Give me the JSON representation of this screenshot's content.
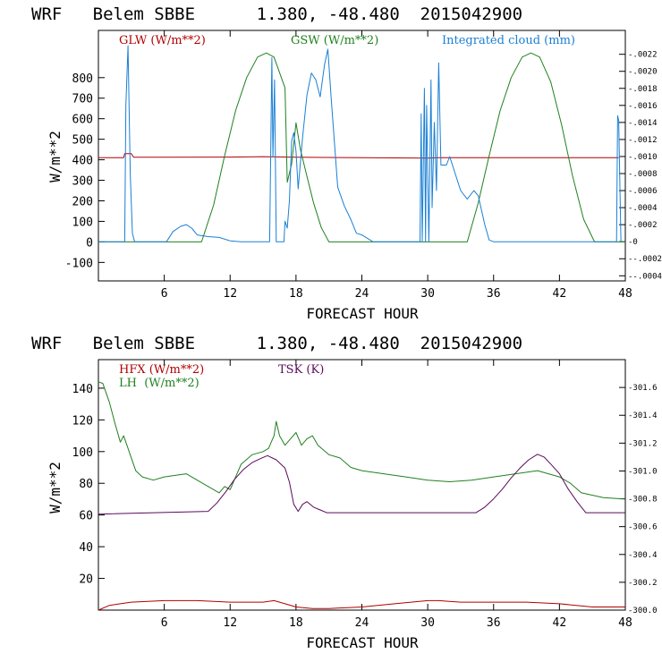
{
  "chart_data": [
    {
      "type": "line",
      "title": "WRF   Belem SBBE      1.380, -48.480  2015042900",
      "xlabel": "FORECAST HOUR",
      "ylabel": "W/m**2",
      "xlim": [
        0,
        48
      ],
      "ylim": [
        -190,
        1030
      ],
      "y2lim": [
        -0.00046,
        0.00248
      ],
      "x_ticks": [
        "6",
        "12",
        "18",
        "24",
        "30",
        "36",
        "42",
        "48"
      ],
      "y_ticks": [
        "-100",
        "0",
        "100",
        "200",
        "300",
        "400",
        "500",
        "600",
        "700",
        "800"
      ],
      "y2_ticks": [
        ".0022",
        ".0020",
        ".0018",
        ".0016",
        ".0014",
        ".0012",
        ".0010",
        ".0008",
        ".0006",
        ".0004",
        ".0002",
        "0",
        "-.0002",
        "-.0004"
      ],
      "series": [
        {
          "name": "GLW (W/m**2)",
          "color": "#b00000",
          "axis": "left",
          "x": [
            0,
            2.3,
            2.4,
            3.0,
            3.2,
            6,
            12,
            15,
            18,
            24,
            30,
            31,
            36,
            42,
            47.4
          ],
          "y": [
            410,
            410,
            430,
            430,
            412,
            412,
            413,
            415,
            412,
            410,
            408,
            410,
            410,
            410,
            410
          ]
        },
        {
          "name": "GSW (W/m**2)",
          "color": "#208020",
          "axis": "left",
          "x": [
            0,
            9.4,
            10.5,
            11.5,
            12.5,
            13.5,
            14.5,
            15.3,
            16,
            17,
            17.2,
            17.6,
            18,
            18.4,
            19,
            19.6,
            20.3,
            21,
            33.6,
            34.6,
            35.6,
            36.6,
            37.6,
            38.6,
            39.4,
            40.2,
            41.2,
            42.2,
            43.2,
            44.2,
            45.2,
            48
          ],
          "y": [
            0,
            0,
            180,
            420,
            640,
            800,
            900,
            920,
            900,
            750,
            290,
            380,
            580,
            450,
            320,
            190,
            70,
            0,
            0,
            190,
            420,
            640,
            800,
            900,
            920,
            900,
            780,
            570,
            320,
            110,
            0,
            0
          ]
        },
        {
          "name": "Integrated cloud (mm)",
          "color": "#1a7fd4",
          "axis": "right",
          "x": [
            0,
            2.4,
            2.5,
            2.7,
            2.9,
            3.1,
            3.3,
            6.2,
            6.8,
            7.5,
            8,
            8.5,
            9,
            10,
            11,
            12,
            13,
            15.6,
            15.8,
            15.9,
            16.05,
            16.2,
            16.9,
            17,
            17.2,
            17.4,
            17.6,
            17.8,
            18,
            18.2,
            18.6,
            19,
            19.4,
            19.8,
            20.2,
            20.6,
            20.9,
            21.2,
            21.8,
            22.4,
            23,
            23.5,
            24,
            25,
            29.3,
            29.4,
            29.5,
            29.7,
            29.8,
            29.9,
            30.1,
            30.3,
            30.4,
            30.6,
            30.8,
            31,
            31.2,
            31.4,
            31.7,
            32,
            32.5,
            33,
            33.6,
            34.2,
            34.6,
            35.2,
            35.6,
            36,
            47.2,
            47.3,
            47.4,
            47.6
          ],
          "y": [
            0,
            0,
            0.0016,
            0.0023,
            0.0008,
            0.0001,
            0,
            0,
            0.00012,
            0.00018,
            0.0002,
            0.00016,
            8e-05,
            6e-05,
            5e-05,
            1e-05,
            0,
            0,
            0.00216,
            0.001,
            0.0019,
            0,
            0,
            0.00024,
            0.00016,
            0.00048,
            0.00118,
            0.00128,
            0.00106,
            0.00062,
            0.00122,
            0.00172,
            0.00198,
            0.0019,
            0.0017,
            0.00208,
            0.00226,
            0.0017,
            0.00064,
            0.00042,
            0.00026,
            0.0001,
            8e-05,
            0,
            0,
            0.0015,
            0,
            0.0018,
            0,
            0.0016,
            0,
            0.0019,
            0.0004,
            0.0014,
            0.0006,
            0.0021,
            0.0009,
            0.0009,
            0.0009,
            0.001,
            0.0008,
            0.0006,
            0.0005,
            0.0006,
            0.00054,
            0.0002,
            2e-05,
            0,
            0,
            0.00148,
            0.00142,
            0
          ]
        }
      ]
    },
    {
      "type": "line",
      "title": "WRF   Belem SBBE      1.380, -48.480  2015042900",
      "xlabel": "FORECAST HOUR",
      "ylabel": "W/m**2",
      "xlim": [
        0,
        48
      ],
      "ylim": [
        0,
        158
      ],
      "y2lim": [
        300.0,
        301.8
      ],
      "x_ticks": [
        "6",
        "12",
        "18",
        "24",
        "30",
        "36",
        "42",
        "48"
      ],
      "y_ticks": [
        "20",
        "40",
        "60",
        "80",
        "100",
        "120",
        "140"
      ],
      "y2_ticks": [
        "301.6",
        "301.4",
        "301.2",
        "301.0",
        "300.8",
        "300.6",
        "300.4",
        "300.2",
        "300.0"
      ],
      "series": [
        {
          "name": "HFX (W/m**2)",
          "color": "#b00000",
          "axis": "left",
          "x": [
            0,
            1,
            2,
            3,
            6,
            9,
            12,
            15,
            16,
            17,
            18,
            19.5,
            21,
            24,
            27,
            30,
            31,
            33,
            36,
            39,
            42,
            45,
            48
          ],
          "y": [
            0,
            3,
            4,
            5,
            6,
            6,
            5,
            5,
            6,
            4,
            2,
            1,
            1,
            2,
            4,
            6,
            6,
            5,
            5,
            5,
            4,
            2,
            2
          ]
        },
        {
          "name": "LH  (W/m**2)",
          "color": "#208020",
          "axis": "left",
          "x": [
            0,
            0.4,
            1,
            1.5,
            2,
            2.3,
            2.6,
            3,
            3.4,
            4,
            5,
            6,
            7,
            8,
            9,
            10,
            10.5,
            11,
            11.5,
            12,
            12.5,
            13,
            14,
            15,
            15.5,
            16,
            16.2,
            16.5,
            17,
            17.5,
            18,
            18.5,
            19,
            19.5,
            20,
            21,
            22,
            23,
            24,
            26,
            28,
            30,
            32,
            34,
            36,
            38,
            40,
            41,
            42,
            43,
            44,
            46,
            48
          ],
          "y": [
            144,
            143,
            131,
            118,
            106,
            110,
            104,
            96,
            88,
            84,
            82,
            84,
            85,
            86,
            82,
            78,
            76,
            74,
            78,
            76,
            84,
            92,
            98,
            100,
            102,
            110,
            119,
            110,
            104,
            108,
            112,
            104,
            108,
            110,
            104,
            98,
            96,
            90,
            88,
            86,
            84,
            82,
            81,
            82,
            84,
            86,
            88,
            86,
            84,
            80,
            74,
            71,
            70
          ]
        },
        {
          "name": "TSK (K)",
          "color": "#5a0a5a",
          "axis": "right",
          "x": [
            0,
            10,
            10.8,
            11.6,
            12.4,
            13.2,
            14,
            14.8,
            15.4,
            16.2,
            17,
            17.4,
            17.8,
            18.2,
            18.6,
            19,
            19.6,
            20.2,
            20.8,
            22,
            24,
            30,
            34.4,
            35.2,
            36,
            36.8,
            37.6,
            38.4,
            39.2,
            40,
            40.6,
            41.2,
            42,
            42.8,
            43.6,
            44.4,
            48
          ],
          "y": [
            300.69,
            300.71,
            300.77,
            300.85,
            300.94,
            301.01,
            301.06,
            301.09,
            301.11,
            301.08,
            301.02,
            300.92,
            300.76,
            300.71,
            300.76,
            300.78,
            300.74,
            300.72,
            300.7,
            300.7,
            300.7,
            300.7,
            300.7,
            300.74,
            300.8,
            300.87,
            300.95,
            301.02,
            301.08,
            301.12,
            301.1,
            301.05,
            300.98,
            300.87,
            300.78,
            300.7,
            300.7
          ]
        }
      ]
    }
  ]
}
